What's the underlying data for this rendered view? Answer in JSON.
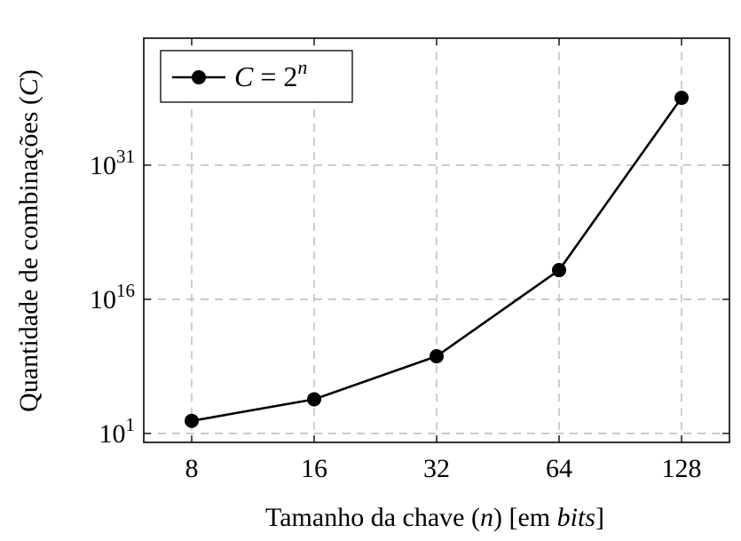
{
  "chart_data": {
    "type": "line",
    "scale": {
      "x": "log2",
      "y": "log10"
    },
    "x": [
      8,
      16,
      32,
      64,
      128
    ],
    "x_tick_labels": [
      "8",
      "16",
      "32",
      "64",
      "128"
    ],
    "y_ticks": [
      {
        "exponent": 1,
        "base": "10",
        "sup": "1"
      },
      {
        "exponent": 16,
        "base": "10",
        "sup": "16"
      },
      {
        "exponent": 31,
        "base": "10",
        "sup": "31"
      }
    ],
    "series": [
      {
        "name": "C = 2^n",
        "legend_parts": {
          "lhs": "C",
          "eq": " = ",
          "base": "2",
          "sup": "n"
        },
        "color": "#000000",
        "marker": "circle",
        "values": [
          256,
          65536,
          4294967296,
          1.8446744e+19,
          3.4028237e+38
        ]
      }
    ],
    "xlabel": {
      "main": "Tamanho da chave (",
      "var": "n",
      "mid": ") [em ",
      "em": "bits",
      "end": "]"
    },
    "ylabel": {
      "main": "Quantidade de combinações (",
      "var": "C",
      "end": ")"
    },
    "xlim": [
      8,
      128
    ],
    "ylim_exponent": [
      0,
      45.2
    ],
    "grid": true,
    "grid_style": "dashed",
    "legend_position": "top-left"
  }
}
